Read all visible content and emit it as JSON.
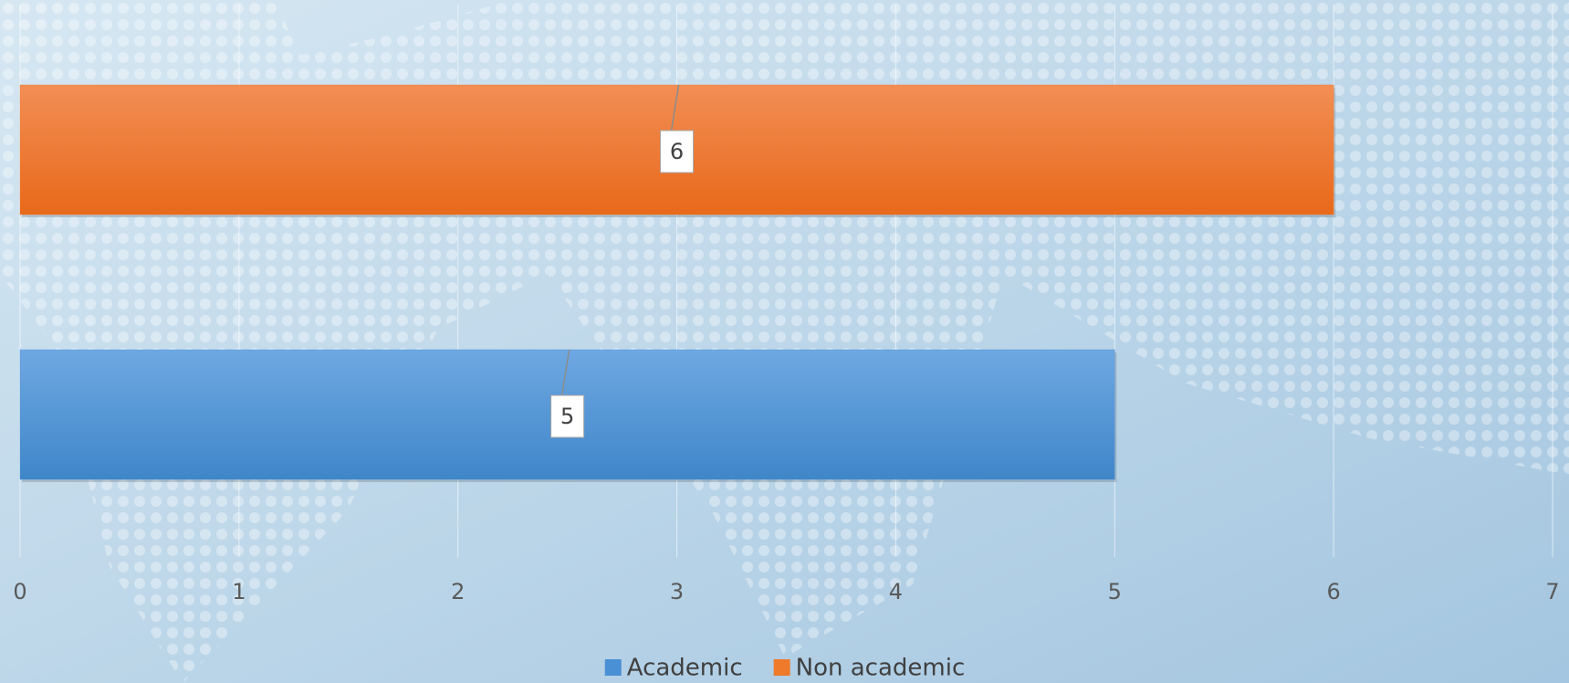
{
  "chart_data": {
    "type": "bar",
    "orientation": "horizontal",
    "categories": [
      null
    ],
    "series": [
      {
        "name": "Academic",
        "color": "#4a90d4",
        "values": [
          5
        ]
      },
      {
        "name": "Non academic",
        "color": "#ef7a2c",
        "values": [
          6
        ]
      }
    ],
    "xlim": [
      0,
      7
    ],
    "xticks": [
      0,
      1,
      2,
      3,
      4,
      5,
      6,
      7
    ],
    "grid": true,
    "legend": "bottom"
  }
}
